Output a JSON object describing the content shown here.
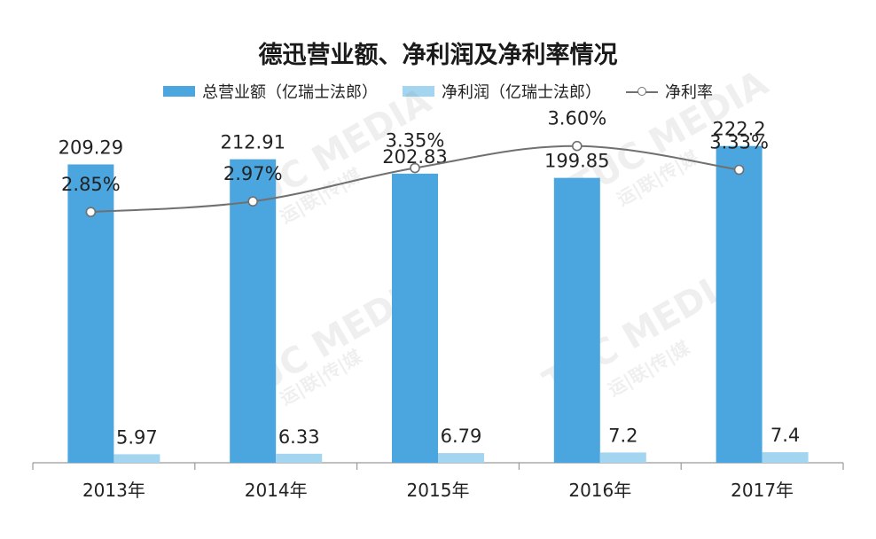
{
  "chart_data": {
    "type": "bar",
    "title": "德迅营业额、净利润及净利率情况",
    "categories": [
      "2013年",
      "2014年",
      "2015年",
      "2016年",
      "2017年"
    ],
    "series": [
      {
        "name": "总营业额（亿瑞士法郎）",
        "type": "bar",
        "color": "#4ba6e0",
        "values": [
          209.29,
          212.91,
          202.83,
          199.85,
          222.2
        ],
        "labels": [
          "209.29",
          "212.91",
          "202.83",
          "199.85",
          "222.2"
        ]
      },
      {
        "name": "净利润（亿瑞士法郎）",
        "type": "bar",
        "color": "#a3d5f0",
        "values": [
          5.97,
          6.33,
          6.79,
          7.2,
          7.4
        ],
        "labels": [
          "5.97",
          "6.33",
          "6.79",
          "7.2",
          "7.4"
        ]
      },
      {
        "name": "净利率",
        "type": "line",
        "color": "#707070",
        "values": [
          2.85,
          2.97,
          3.35,
          3.6,
          3.33
        ],
        "labels": [
          "2.85%",
          "2.97%",
          "3.35%",
          "3.60%",
          "3.33%"
        ]
      }
    ],
    "bar_ylim": [
      0,
      250
    ],
    "line_ylim": [
      0,
      4
    ],
    "grid": false,
    "legend": "top-center"
  },
  "watermark": {
    "brand": "TUC MEDIA",
    "chinese": "运|联|传|媒"
  }
}
